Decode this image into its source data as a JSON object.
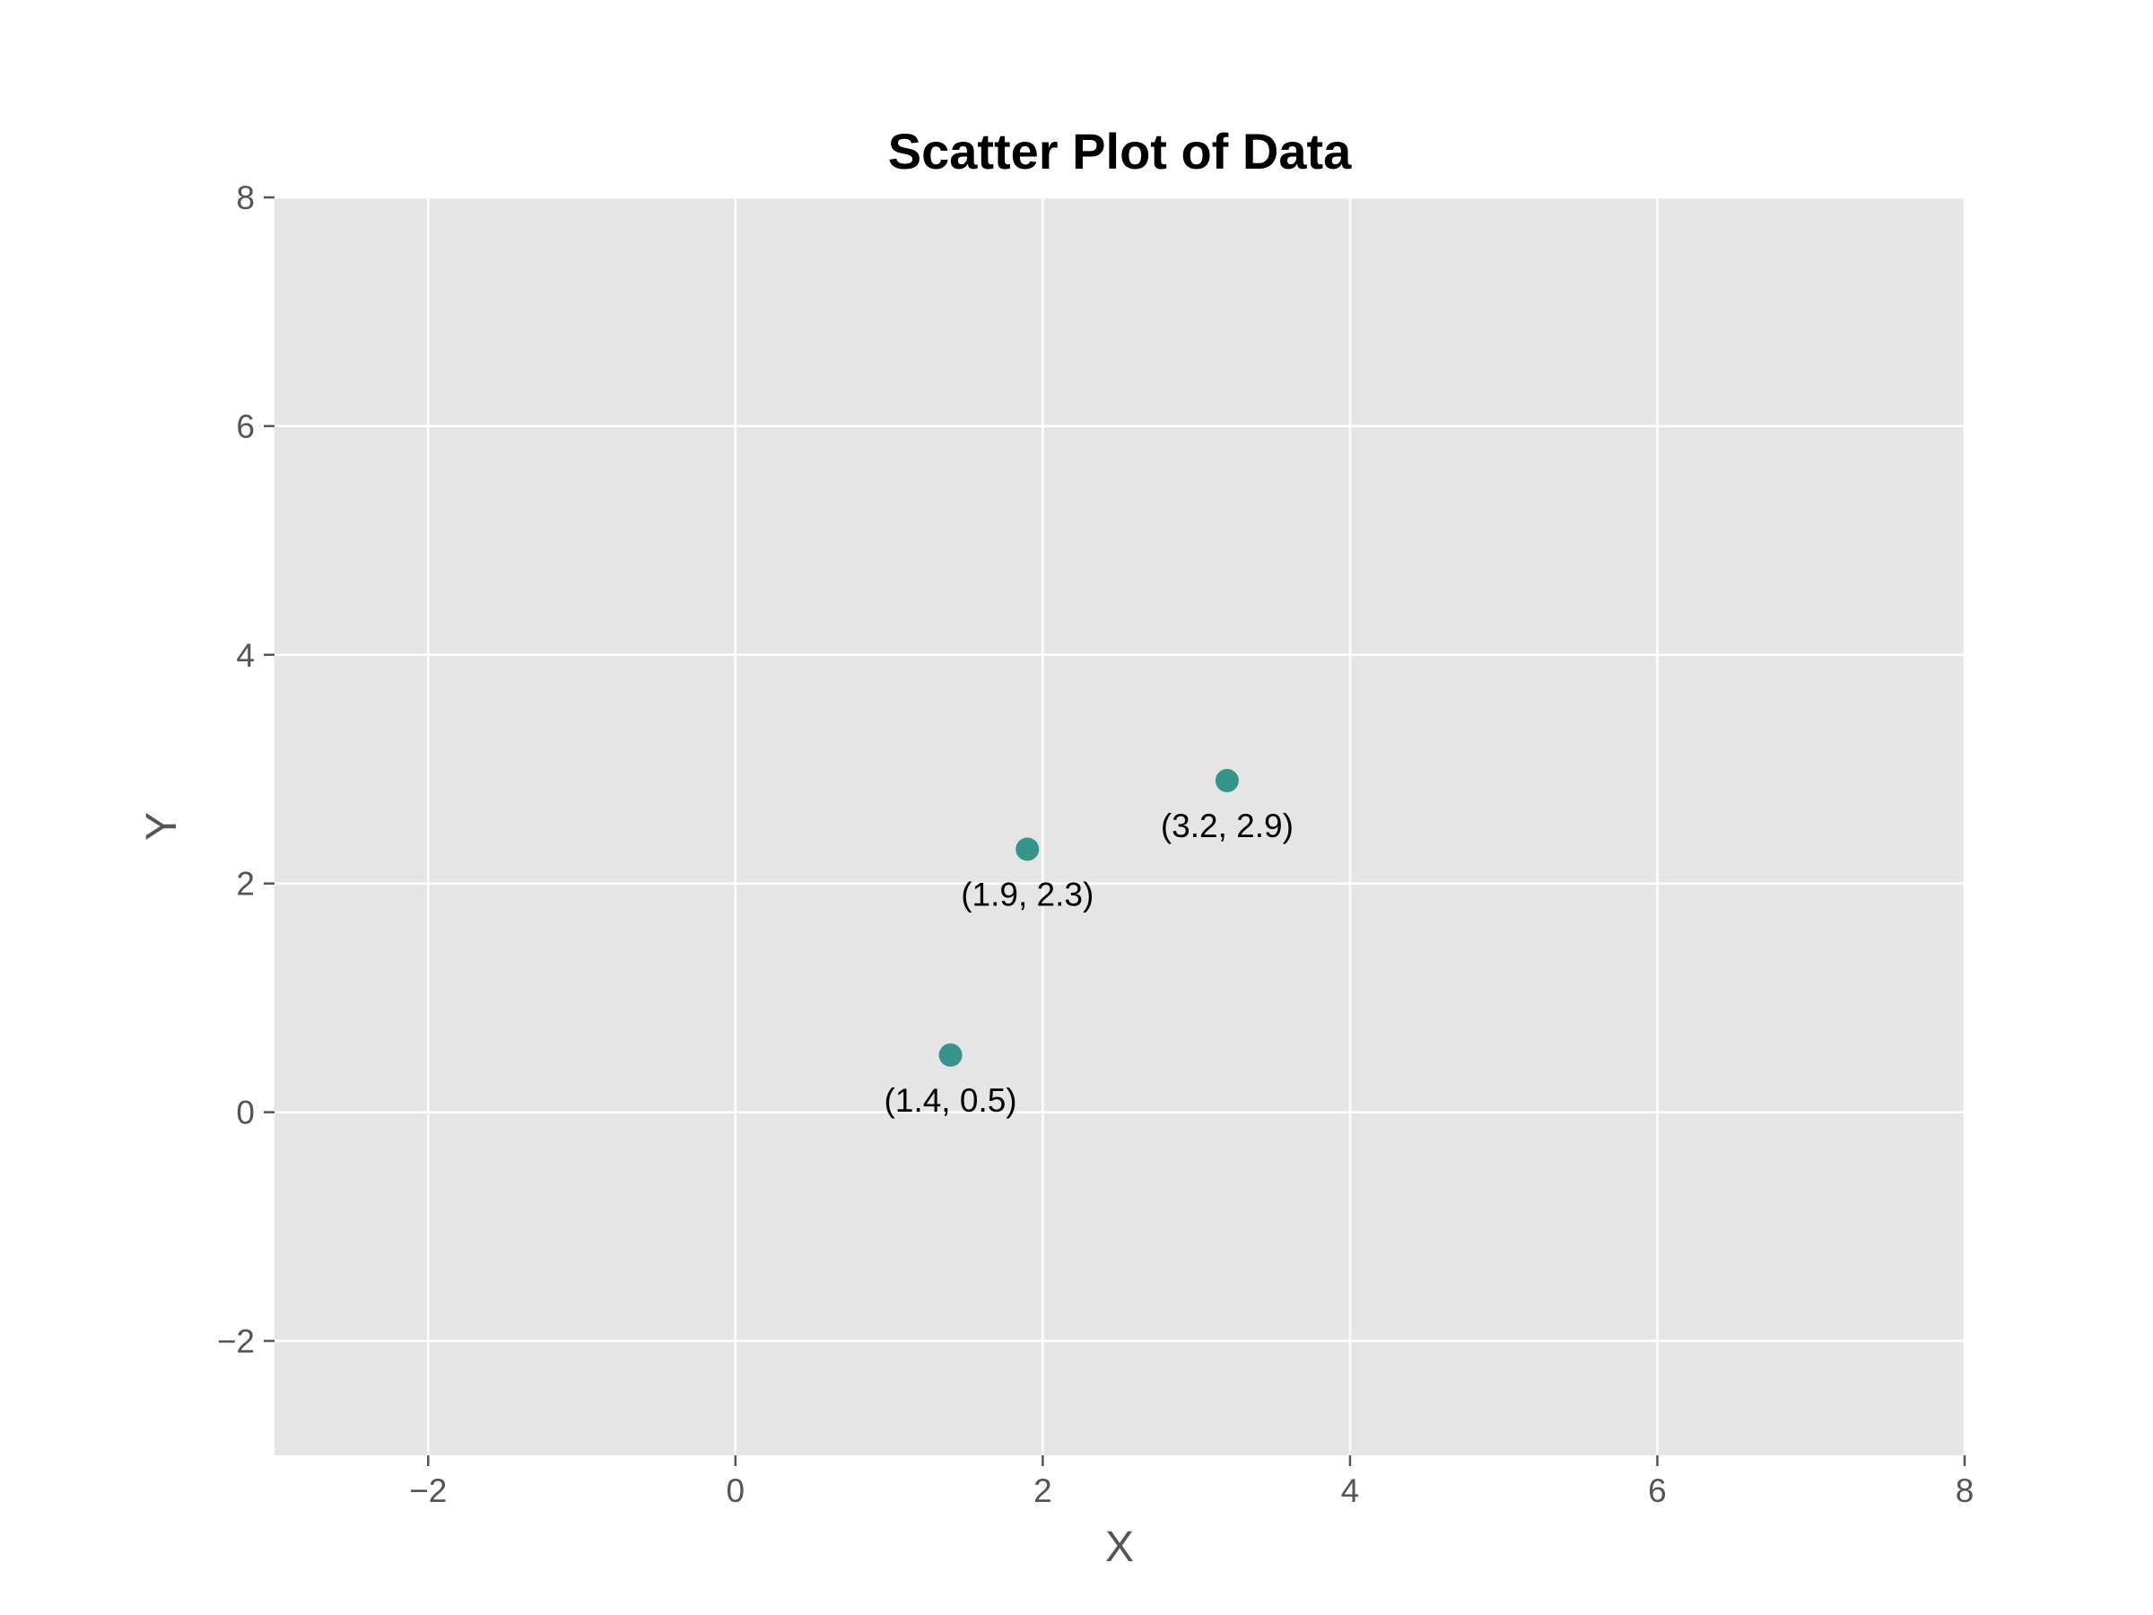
{
  "chart_data": {
    "type": "scatter",
    "title": "Scatter Plot of Data",
    "xlabel": "X",
    "ylabel": "Y",
    "xlim": [
      -3,
      8
    ],
    "ylim": [
      -3,
      8
    ],
    "xticks": [
      -2,
      0,
      2,
      4,
      6,
      8
    ],
    "yticks": [
      -2,
      0,
      2,
      4,
      6,
      8
    ],
    "xtick_labels": [
      "−2",
      "0",
      "2",
      "4",
      "6",
      "8"
    ],
    "ytick_labels": [
      "−2",
      "0",
      "2",
      "4",
      "6",
      "8"
    ],
    "grid": true,
    "points": [
      {
        "x": 1.4,
        "y": 0.5,
        "label": "(1.4, 0.5)"
      },
      {
        "x": 1.9,
        "y": 2.3,
        "label": "(1.9, 2.3)"
      },
      {
        "x": 3.2,
        "y": 2.9,
        "label": "(3.2, 2.9)"
      }
    ],
    "colors": {
      "plot_background": "#e5e5e5",
      "grid": "#ffffff",
      "marker": "#35958d"
    }
  }
}
